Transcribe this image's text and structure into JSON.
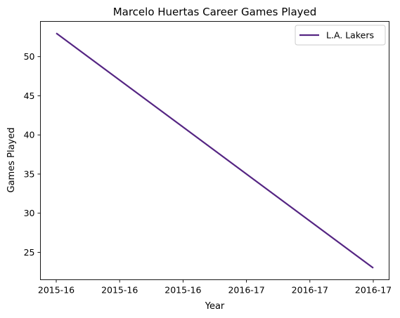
{
  "chart_data": {
    "type": "line",
    "title": "Marcelo Huertas Career Games Played",
    "xlabel": "Year",
    "ylabel": "Games Played",
    "x": [
      "2015-16",
      "2016-17"
    ],
    "x_ticks": [
      "2015-16",
      "2015-16",
      "2015-16",
      "2016-17",
      "2016-17",
      "2016-17"
    ],
    "series": [
      {
        "name": "L.A. Lakers",
        "values": [
          53,
          23
        ],
        "color": "#552583"
      }
    ],
    "y_ticks": [
      25,
      30,
      35,
      40,
      45,
      50
    ],
    "ylim": [
      21.5,
      54.5
    ],
    "grid": false,
    "legend_position": "top-right"
  }
}
